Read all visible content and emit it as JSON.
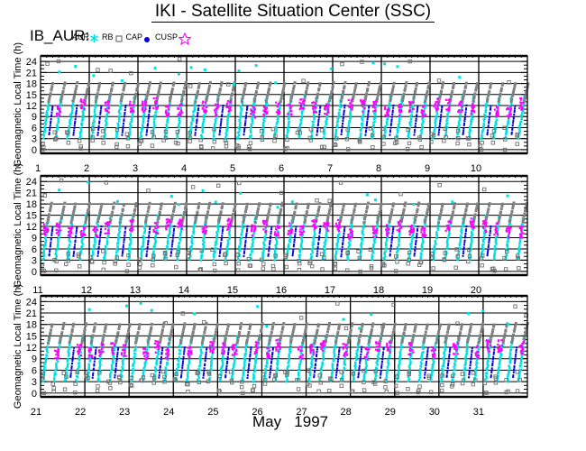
{
  "title": "IKI - Satellite Situation Center (SSC)",
  "instrument": "IB_AUR:",
  "legend": [
    {
      "label": "AUR",
      "symbol": "asterisk",
      "color": "#00e0e0"
    },
    {
      "label": "RB",
      "symbol": "square",
      "color": "#707070"
    },
    {
      "label": "CAP",
      "symbol": "dot",
      "color": "#0000e0"
    },
    {
      "label": "CUSP",
      "symbol": "star",
      "color": "#ff00ff"
    }
  ],
  "month_label": "May   1997",
  "colors": {
    "AUR": "#00e0e0",
    "RB": "#707070",
    "CAP": "#0000e0",
    "CUSP": "#ff00ff"
  },
  "chart_data": {
    "type": "scatter",
    "title": "IKI - Satellite Situation Center (SSC)",
    "ylabel": "Geomagnetic Local Time (h)",
    "xlabel": "May 1997",
    "ylim": [
      -1,
      25.5
    ],
    "yticks": [
      0,
      3,
      6,
      9,
      12,
      15,
      18,
      21,
      24
    ],
    "grid": true,
    "legend_position": "top-left",
    "series_names": [
      "AUR",
      "RB",
      "CAP",
      "CUSP"
    ],
    "passes_per_day": 4,
    "typical_ranges_h": {
      "AUR": [
        3,
        15
      ],
      "RB": [
        0,
        18
      ],
      "CAP": [
        3,
        12
      ],
      "CUSP": [
        8.5,
        14.5
      ]
    },
    "panels": [
      {
        "days": [
          1,
          2,
          3,
          4,
          5,
          6,
          7,
          8,
          9,
          10
        ],
        "day_labels": [
          "1",
          "2",
          "3",
          "4",
          "5",
          "6",
          "7",
          "8",
          "9",
          "10"
        ]
      },
      {
        "days": [
          11,
          12,
          13,
          14,
          15,
          16,
          17,
          18,
          19,
          20
        ],
        "day_labels": [
          "11",
          "12",
          "13",
          "14",
          "15",
          "16",
          "17",
          "18",
          "19",
          "20"
        ]
      },
      {
        "days": [
          21,
          22,
          23,
          24,
          25,
          26,
          27,
          28,
          29,
          30,
          31
        ],
        "day_labels": [
          "21",
          "22",
          "23",
          "24",
          "25",
          "26",
          "27",
          "28",
          "29",
          "30",
          "31"
        ]
      }
    ]
  }
}
